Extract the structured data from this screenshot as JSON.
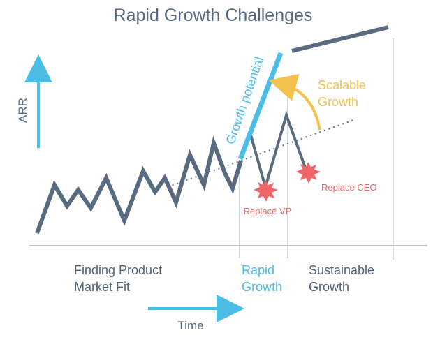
{
  "title": "Rapid Growth Challenges",
  "y_axis_label": "ARR",
  "x_axis_label": "Time",
  "phases": {
    "finding_fit": [
      "Finding Product",
      "Market Fit"
    ],
    "rapid": [
      "Rapid",
      "Growth"
    ],
    "sustainable": [
      "Sustainable",
      "Growth"
    ]
  },
  "annotations": {
    "growth_potential": "Growth potential",
    "scalable_growth": [
      "Scalable",
      "Growth"
    ],
    "replace_vp": "Replace VP",
    "replace_ceo": "Replace CEO"
  },
  "colors": {
    "dark_line": "#586b80",
    "blue": "#4bbde6",
    "yellow": "#f2c14e",
    "red_burst": "#f06565",
    "divider": "#d5d8dc",
    "axis": "#a9b0b8"
  }
}
